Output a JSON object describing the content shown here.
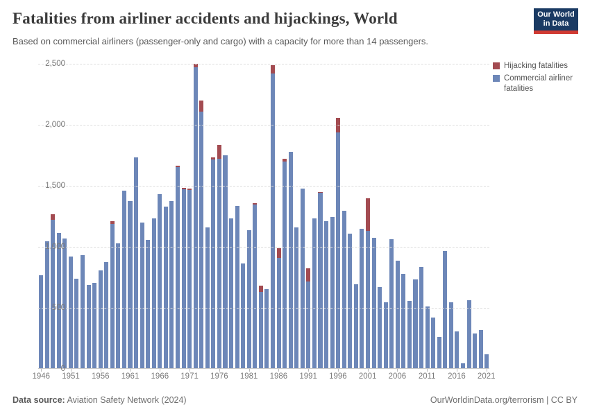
{
  "header": {
    "title": "Fatalities from airliner accidents and hijackings, World",
    "subtitle": "Based on commercial airliners (passenger-only and cargo) with a capacity for more than 14 passengers."
  },
  "logo": {
    "line1": "Our World",
    "line2": "in Data",
    "bg_color": "#1a3a63",
    "accent_color": "#d13b33"
  },
  "legend": {
    "items": [
      {
        "label": "Hijacking fatalities",
        "color": "#a34b51"
      },
      {
        "label": "Commercial airliner fatalities",
        "color": "#6d87b8"
      }
    ]
  },
  "footer": {
    "source_label": "Data source:",
    "source_value": " Aviation Safety Network (2024)",
    "right_text": "OurWorldinData.org/terrorism | CC BY"
  },
  "chart_data": {
    "type": "bar",
    "stacked": true,
    "title": "Fatalities from airliner accidents and hijackings, World",
    "xlabel": "",
    "ylabel": "",
    "ylim": [
      0,
      2500
    ],
    "grid": "dashed-horizontal",
    "legend_position": "top-right",
    "year_start": 1946,
    "year_end": 2021,
    "y_tick_labels": [
      "2,500",
      "2,000",
      "1,500",
      "1,000",
      "500",
      "0"
    ],
    "y_tick_values": [
      2500,
      2000,
      1500,
      1000,
      500,
      0
    ],
    "x_tick_years": [
      1946,
      1951,
      1956,
      1961,
      1966,
      1971,
      1976,
      1981,
      1986,
      1991,
      1996,
      2001,
      2006,
      2011,
      2016,
      2021
    ],
    "series": [
      {
        "name": "Commercial airliner fatalities",
        "color": "#6d87b8",
        "values": [
          760,
          1040,
          1215,
          1110,
          1060,
          915,
          735,
          925,
          680,
          700,
          800,
          870,
          1180,
          1025,
          1455,
          1370,
          1725,
          1195,
          1050,
          1225,
          1425,
          1325,
          1370,
          1645,
          1465,
          1460,
          2465,
          2105,
          1155,
          1710,
          1715,
          1745,
          1230,
          1330,
          860,
          1130,
          1340,
          625,
          645,
          2415,
          905,
          1695,
          1775,
          1155,
          1470,
          710,
          1230,
          1435,
          1205,
          1240,
          1930,
          1290,
          1100,
          685,
          1140,
          1125,
          1070,
          665,
          540,
          1055,
          880,
          775,
          550,
          730,
          830,
          505,
          415,
          255,
          960,
          540,
          300,
          40,
          555,
          285,
          315,
          115
        ]
      },
      {
        "name": "Hijacking fatalities",
        "color": "#a34b51",
        "values": [
          0,
          0,
          45,
          0,
          0,
          0,
          0,
          0,
          0,
          0,
          0,
          0,
          25,
          0,
          0,
          0,
          0,
          0,
          0,
          0,
          0,
          0,
          0,
          15,
          15,
          10,
          30,
          90,
          0,
          15,
          115,
          0,
          0,
          0,
          0,
          0,
          10,
          50,
          0,
          70,
          80,
          20,
          0,
          0,
          0,
          110,
          0,
          10,
          0,
          0,
          120,
          0,
          0,
          0,
          0,
          265,
          0,
          0,
          0,
          0,
          0,
          0,
          0,
          0,
          0,
          0,
          0,
          0,
          0,
          0,
          0,
          0,
          0,
          0,
          0,
          0
        ]
      }
    ]
  }
}
